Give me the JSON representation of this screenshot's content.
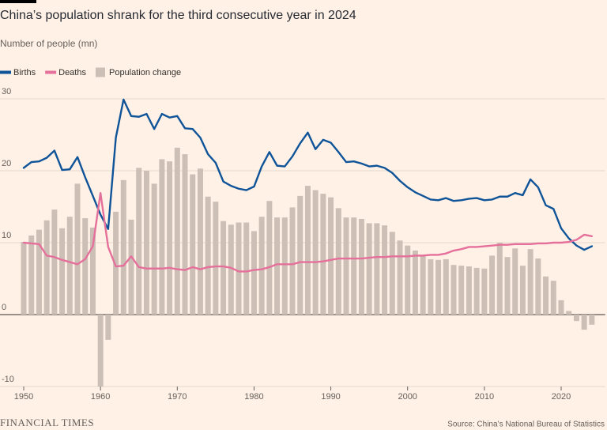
{
  "chart_data": {
    "type": "combo",
    "title": "China’s population shrank for the third consecutive year in 2024",
    "subtitle": "Number of people (mn)",
    "source": "Source: China’s National Bureau of Statistics",
    "brand": "FINANCIAL TIMES",
    "x": [
      1950,
      1951,
      1952,
      1953,
      1954,
      1955,
      1956,
      1957,
      1958,
      1959,
      1960,
      1961,
      1962,
      1963,
      1964,
      1965,
      1966,
      1967,
      1968,
      1969,
      1970,
      1971,
      1972,
      1973,
      1974,
      1975,
      1976,
      1977,
      1978,
      1979,
      1980,
      1981,
      1982,
      1983,
      1984,
      1985,
      1986,
      1987,
      1988,
      1989,
      1990,
      1991,
      1992,
      1993,
      1994,
      1995,
      1996,
      1997,
      1998,
      1999,
      2000,
      2001,
      2002,
      2003,
      2004,
      2005,
      2006,
      2007,
      2008,
      2009,
      2010,
      2011,
      2012,
      2013,
      2014,
      2015,
      2016,
      2017,
      2018,
      2019,
      2020,
      2021,
      2022,
      2023,
      2024
    ],
    "series": [
      {
        "name": "Births",
        "type": "line",
        "color": "#0f5499",
        "values": [
          20.4,
          21.2,
          21.3,
          21.8,
          22.8,
          20.1,
          20.2,
          21.9,
          19.1,
          16.5,
          13.9,
          11.9,
          24.6,
          29.9,
          27.6,
          27.5,
          27.9,
          25.8,
          27.9,
          27.4,
          27.6,
          25.9,
          25.8,
          24.6,
          22.3,
          21.1,
          18.5,
          17.9,
          17.5,
          17.3,
          17.8,
          20.6,
          22.6,
          20.7,
          20.6,
          22.0,
          23.8,
          25.3,
          23.0,
          24.3,
          23.9,
          22.6,
          21.2,
          21.3,
          21.0,
          20.6,
          20.7,
          20.4,
          19.7,
          18.6,
          17.7,
          17.0,
          16.5,
          16.0,
          15.9,
          16.2,
          15.8,
          15.9,
          16.1,
          16.2,
          15.9,
          16.0,
          16.4,
          16.4,
          16.9,
          16.6,
          18.8,
          17.7,
          15.2,
          14.7,
          12.0,
          10.6,
          9.6,
          9.0,
          9.5
        ]
      },
      {
        "name": "Deaths",
        "type": "line",
        "color": "#e5709b",
        "values": [
          10.0,
          9.9,
          9.8,
          8.2,
          8.0,
          7.6,
          7.3,
          7.0,
          7.7,
          9.5,
          16.9,
          9.4,
          6.7,
          6.8,
          8.1,
          6.6,
          6.4,
          6.4,
          6.4,
          6.5,
          6.3,
          6.2,
          6.6,
          6.3,
          6.6,
          6.7,
          6.7,
          6.5,
          6.0,
          6.0,
          6.2,
          6.3,
          6.6,
          7.0,
          7.0,
          7.0,
          7.3,
          7.3,
          7.3,
          7.4,
          7.6,
          7.8,
          7.8,
          7.8,
          7.8,
          7.9,
          8.0,
          8.0,
          8.1,
          8.1,
          8.1,
          8.2,
          8.2,
          8.3,
          8.3,
          8.5,
          8.9,
          9.1,
          9.4,
          9.4,
          9.5,
          9.6,
          9.7,
          9.7,
          9.8,
          9.8,
          9.8,
          9.9,
          9.9,
          10.0,
          10.0,
          10.1,
          10.4,
          11.1,
          10.9
        ]
      },
      {
        "name": "Population change",
        "type": "bar",
        "color": "#cbbfb6",
        "values": [
          10.1,
          11.0,
          11.8,
          13.1,
          14.6,
          12.0,
          13.6,
          18.2,
          13.4,
          12.1,
          -10.0,
          -3.5,
          14.3,
          18.7,
          13.2,
          20.4,
          20.0,
          18.2,
          21.6,
          21.3,
          23.2,
          22.3,
          19.5,
          20.3,
          16.4,
          15.7,
          13.0,
          12.5,
          12.8,
          12.8,
          11.6,
          13.6,
          15.8,
          13.5,
          13.5,
          14.9,
          16.5,
          17.9,
          17.3,
          16.8,
          16.3,
          14.8,
          13.5,
          13.5,
          13.3,
          12.7,
          12.7,
          12.4,
          11.5,
          10.3,
          9.6,
          8.9,
          8.3,
          7.7,
          7.6,
          7.7,
          6.9,
          6.8,
          6.7,
          6.5,
          6.4,
          8.2,
          10.0,
          8.0,
          9.2,
          6.8,
          9.1,
          7.8,
          5.3,
          4.7,
          2.0,
          0.5,
          -0.9,
          -2.1,
          -1.4
        ]
      }
    ],
    "xlim": [
      1949.7,
      2024.5
    ],
    "xticks": [
      1950,
      1960,
      1970,
      1980,
      1990,
      2000,
      2010,
      2020
    ],
    "ylim": [
      -10,
      30
    ],
    "yticks": [
      -10,
      0,
      10,
      20,
      30
    ],
    "grid": true
  }
}
